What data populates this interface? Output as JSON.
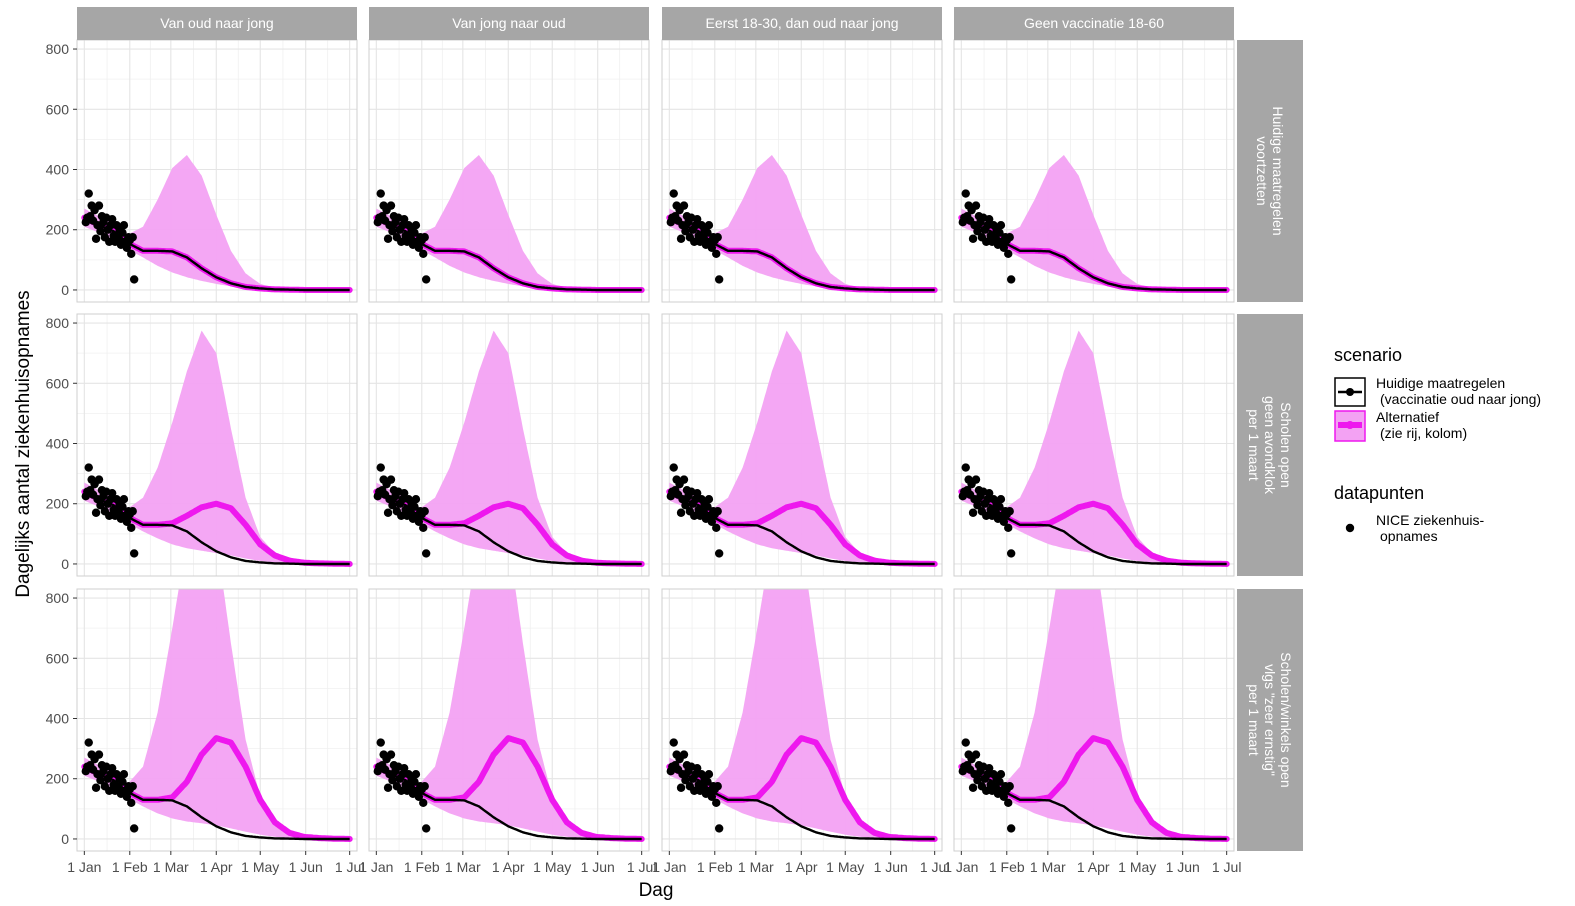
{
  "chart_data": {
    "type": "line",
    "xlabel": "Dag",
    "ylabel": "Dagelijks aantal ziekenhuisopnames",
    "x_ticks": [
      "1 Jan",
      "1 Feb",
      "1 Mar",
      "1 Apr",
      "1 May",
      "1 Jun",
      "1 Jul"
    ],
    "x_tick_days": [
      0,
      31,
      59,
      90,
      120,
      151,
      181
    ],
    "x_range_days": [
      -5,
      186
    ],
    "ylim": [
      -40,
      830
    ],
    "y_ticks": [
      0,
      200,
      400,
      600,
      800
    ],
    "grid": true,
    "facet_columns": [
      "Van oud naar jong",
      "Van jong naar oud",
      "Eerst 18-30, dan oud naar jong",
      "Geen vaccinatie 18-60"
    ],
    "facet_rows": [
      [
        "Huidige maatregelen",
        "voortzetten"
      ],
      [
        "Scholen open",
        "geen avondklok",
        "per 1 maart"
      ],
      [
        "Scholen/winkels open",
        "vlgs \"zeer ernstig\"",
        "per 1 maart"
      ]
    ],
    "legend": {
      "title": "scenario",
      "entries": [
        {
          "label_lines": [
            "Huidige maatregelen",
            "(vaccinatie oud naar jong)"
          ],
          "color": "#000000"
        },
        {
          "label_lines": [
            "Alternatief",
            "(zie rij, kolom)"
          ],
          "color": "#ee18ee"
        }
      ],
      "points_title": "datapunten",
      "points_label_lines": [
        "NICE ziekenhuis-",
        "opnames"
      ]
    },
    "colors": {
      "baseline": "#000000",
      "alternative": "#ee18ee",
      "band": "#f3a2f3",
      "strip": "#a6a6a6",
      "grid": "#e5e5e5",
      "points": "#000000"
    },
    "observed_points": [
      [
        1,
        225
      ],
      [
        2,
        240
      ],
      [
        3,
        320
      ],
      [
        4,
        245
      ],
      [
        5,
        280
      ],
      [
        6,
        230
      ],
      [
        7,
        265
      ],
      [
        8,
        170
      ],
      [
        9,
        215
      ],
      [
        10,
        280
      ],
      [
        11,
        195
      ],
      [
        12,
        245
      ],
      [
        13,
        225
      ],
      [
        14,
        175
      ],
      [
        15,
        240
      ],
      [
        16,
        200
      ],
      [
        17,
        160
      ],
      [
        18,
        215
      ],
      [
        19,
        235
      ],
      [
        20,
        180
      ],
      [
        21,
        160
      ],
      [
        22,
        215
      ],
      [
        23,
        170
      ],
      [
        24,
        200
      ],
      [
        25,
        150
      ],
      [
        26,
        190
      ],
      [
        27,
        215
      ],
      [
        28,
        160
      ],
      [
        29,
        140
      ],
      [
        30,
        175
      ],
      [
        31,
        165
      ],
      [
        32,
        120
      ],
      [
        33,
        175
      ],
      [
        34,
        35
      ]
    ],
    "series": [
      {
        "name": "Huidige maatregelen (vaccinatie oud naar jong)",
        "role": "baseline",
        "x": [
          0,
          10,
          20,
          30,
          40,
          50,
          60,
          70,
          80,
          90,
          100,
          110,
          120,
          130,
          140,
          150,
          160,
          170,
          181
        ],
        "values": [
          240,
          215,
          195,
          155,
          130,
          130,
          128,
          108,
          72,
          42,
          22,
          10,
          5,
          2,
          1,
          0,
          0,
          0,
          0
        ]
      },
      {
        "name": "Alternatief - Huidige maatregelen voortzetten",
        "role": "alternative",
        "facet_row": 0,
        "x": [
          0,
          10,
          20,
          30,
          40,
          50,
          60,
          70,
          80,
          90,
          100,
          110,
          120,
          130,
          140,
          150,
          160,
          170,
          181
        ],
        "values": [
          240,
          215,
          195,
          155,
          130,
          130,
          128,
          108,
          72,
          42,
          22,
          10,
          5,
          2,
          1,
          0,
          0,
          0,
          0
        ],
        "lower": [
          210,
          190,
          168,
          135,
          108,
          80,
          58,
          42,
          30,
          20,
          12,
          6,
          3,
          1,
          0,
          0,
          0,
          0,
          0
        ],
        "upper": [
          270,
          245,
          222,
          185,
          210,
          300,
          405,
          448,
          380,
          250,
          130,
          55,
          20,
          7,
          2,
          1,
          0,
          0,
          0
        ]
      },
      {
        "name": "Alternatief - Scholen open, geen avondklok per 1 maart",
        "role": "alternative",
        "facet_row": 1,
        "x": [
          0,
          10,
          20,
          30,
          40,
          50,
          60,
          70,
          80,
          90,
          100,
          110,
          120,
          130,
          140,
          150,
          160,
          170,
          181
        ],
        "values": [
          240,
          215,
          195,
          155,
          130,
          130,
          135,
          160,
          188,
          200,
          185,
          130,
          65,
          28,
          11,
          4,
          2,
          1,
          0
        ],
        "lower": [
          210,
          190,
          168,
          135,
          108,
          85,
          65,
          52,
          44,
          36,
          28,
          18,
          10,
          5,
          2,
          1,
          0,
          0,
          0
        ],
        "upper": [
          270,
          245,
          222,
          185,
          220,
          320,
          470,
          640,
          775,
          700,
          450,
          220,
          90,
          35,
          12,
          4,
          2,
          1,
          0
        ]
      },
      {
        "name": "Alternatief - Scholen/winkels open vlgs \"zeer ernstig\" per 1 maart",
        "role": "alternative",
        "facet_row": 2,
        "x": [
          0,
          10,
          20,
          30,
          40,
          50,
          60,
          70,
          80,
          90,
          100,
          110,
          120,
          130,
          140,
          150,
          160,
          170,
          181
        ],
        "values": [
          240,
          215,
          195,
          155,
          130,
          130,
          138,
          190,
          280,
          335,
          320,
          240,
          130,
          55,
          20,
          7,
          3,
          1,
          0
        ],
        "lower": [
          210,
          190,
          168,
          135,
          108,
          85,
          68,
          58,
          52,
          45,
          35,
          24,
          14,
          7,
          3,
          1,
          0,
          0,
          0
        ],
        "upper": [
          270,
          245,
          222,
          185,
          240,
          420,
          700,
          1000,
          1200,
          1000,
          650,
          330,
          140,
          55,
          20,
          7,
          2,
          1,
          0
        ]
      }
    ]
  }
}
